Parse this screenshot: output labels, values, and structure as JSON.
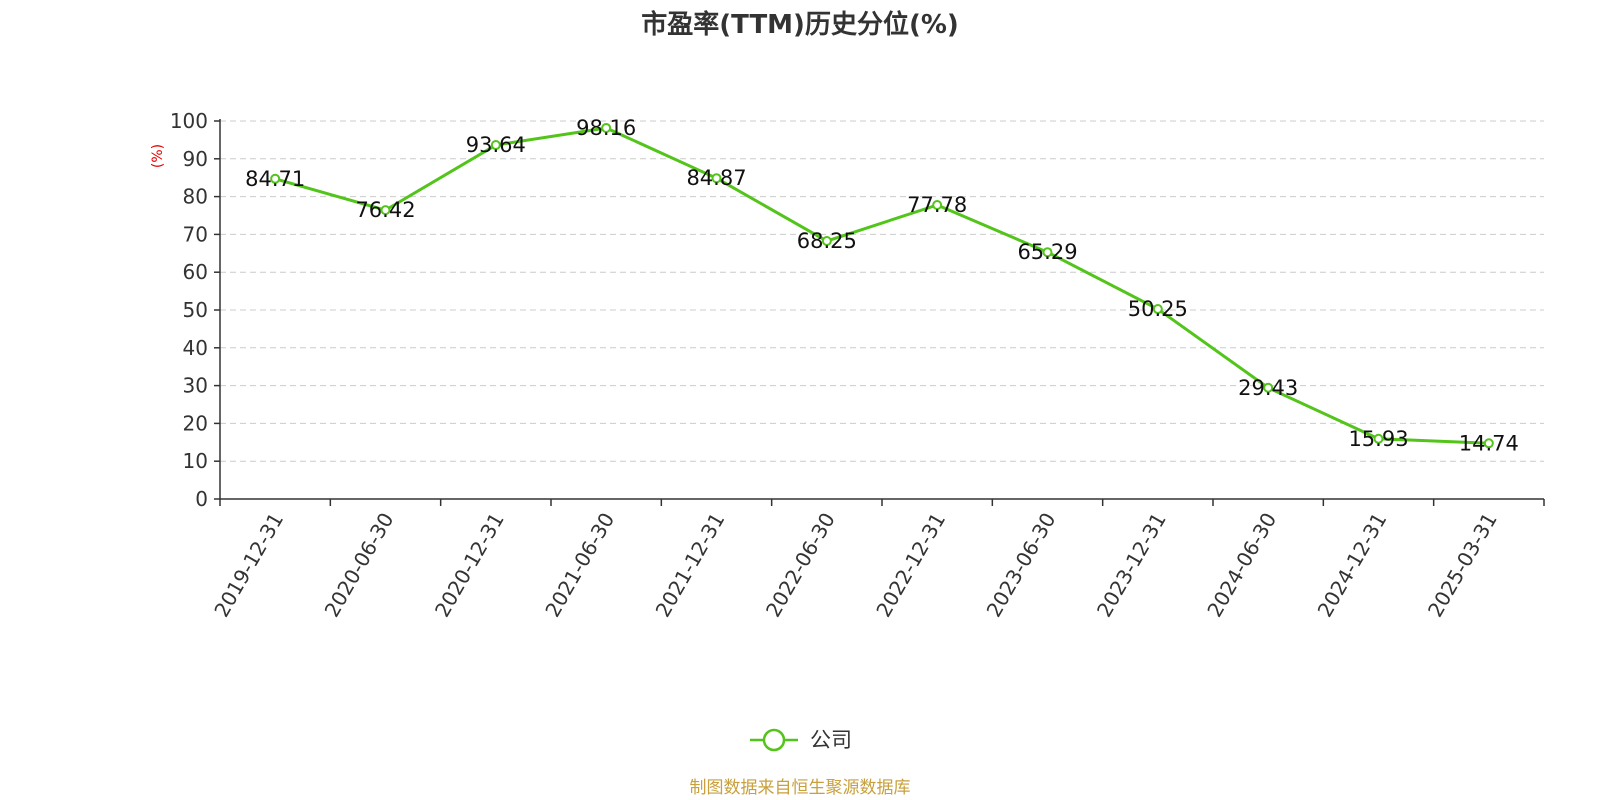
{
  "chart_data": {
    "type": "line",
    "title": "市盈率(TTM)历史分位(%)",
    "ylabel": "(%)",
    "xlabel": "",
    "ylim": [
      0,
      100
    ],
    "yticks": [
      0,
      10,
      20,
      30,
      40,
      50,
      60,
      70,
      80,
      90,
      100
    ],
    "grid": true,
    "legend_position": "bottom-center",
    "categories": [
      "2019-12-31",
      "2020-06-30",
      "2020-12-31",
      "2021-06-30",
      "2021-12-31",
      "2022-06-30",
      "2022-12-31",
      "2023-06-30",
      "2023-12-31",
      "2024-06-30",
      "2024-12-31",
      "2025-03-31"
    ],
    "series": [
      {
        "name": "公司",
        "values": [
          84.71,
          76.42,
          93.64,
          98.16,
          84.87,
          68.25,
          77.78,
          65.29,
          50.25,
          29.43,
          15.93,
          14.74
        ],
        "labels": [
          "84.71",
          "76.42",
          "93.64",
          "98.16",
          "84.87",
          "68.25",
          "77.78",
          "65.29",
          "50.25",
          "29.43",
          "15.93",
          "14.74"
        ],
        "color": "#52c41a"
      }
    ]
  },
  "source_note": "制图数据来自恒生聚源数据库",
  "colors": {
    "ylabel": "#e60000",
    "source": "#c8a03c",
    "grid": "#cccccc",
    "axis": "#333333"
  }
}
